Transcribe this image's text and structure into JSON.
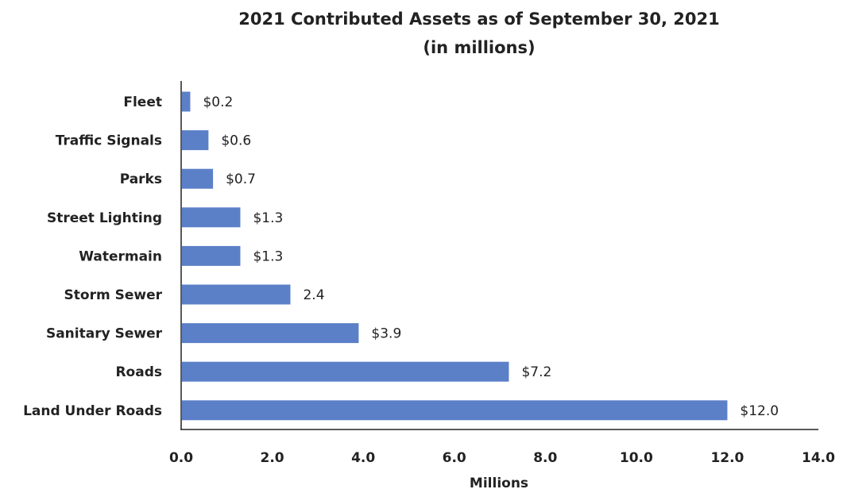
{
  "chart_data": {
    "type": "bar",
    "orientation": "horizontal",
    "title": "2021 Contributed Assets as of September 30, 2021",
    "subtitle": "(in millions)",
    "xlabel": "Millions",
    "ylabel": "",
    "xlim": [
      0,
      14
    ],
    "x_ticks": [
      0,
      2,
      4,
      6,
      8,
      10,
      12,
      14
    ],
    "x_tick_labels": [
      "0.0",
      "2.0",
      "4.0",
      "6.0",
      "8.0",
      "10.0",
      "12.0",
      "14.0"
    ],
    "categories": [
      "Fleet",
      "Traffic Signals",
      "Parks",
      "Street Lighting",
      "Watermain",
      "Storm Sewer",
      "Sanitary Sewer",
      "Roads",
      "Land Under Roads"
    ],
    "values": [
      0.2,
      0.6,
      0.7,
      1.3,
      1.3,
      2.4,
      3.9,
      7.2,
      12.0
    ],
    "data_labels": [
      "$0.2",
      "$0.6",
      "$0.7",
      "$1.3",
      "$1.3",
      "2.4",
      "$3.9",
      "$7.2",
      "$12.0"
    ],
    "bar_color": "#5b80c8",
    "grid": false,
    "legend": "none"
  }
}
